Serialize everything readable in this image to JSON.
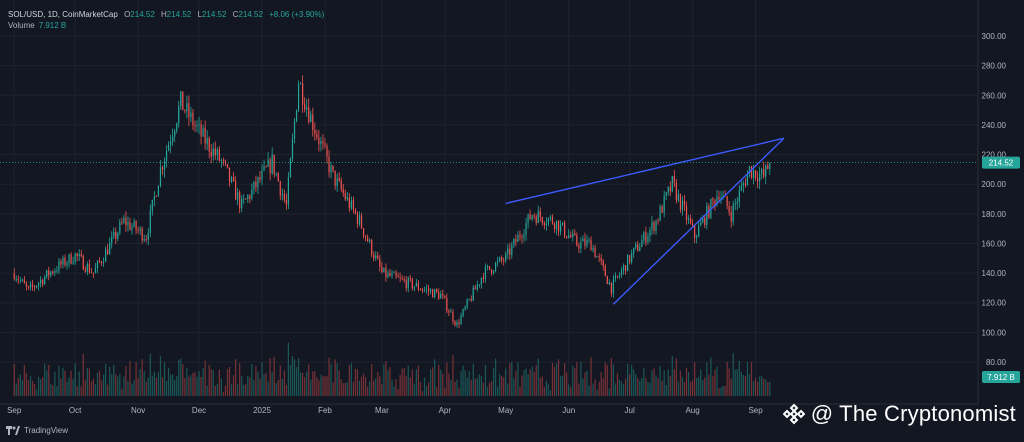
{
  "legend": {
    "symbol": "SOL/USD, 1D, CoinMarketCap",
    "open_label": "O",
    "open": "214.52",
    "high_label": "H",
    "high": "214.52",
    "low_label": "L",
    "low": "214.52",
    "close_label": "C",
    "close": "214.52",
    "change": "+8.06 (+3.90%)",
    "volume_label": "Volume",
    "volume": "7.912 B"
  },
  "branding": {
    "tradingview": "TradingView",
    "watermark": "@ The Cryptonomist"
  },
  "colors": {
    "up": "#26a69a",
    "down": "#ef5350",
    "trendline": "#3d5afe",
    "background": "#131722",
    "grid": "#1e222d"
  },
  "chart_data": {
    "type": "candlestick",
    "title": "SOL/USD, 1D, CoinMarketCap",
    "ylim": [
      80,
      305
    ],
    "y_ticks": [
      80,
      100,
      120,
      140,
      160,
      180,
      200,
      220,
      240,
      260,
      280,
      300
    ],
    "y_tick_labels": [
      "80.00",
      "100.00",
      "120.00",
      "140.00",
      "160.00",
      "180.00",
      "200.00",
      "220.00",
      "240.00",
      "260.00",
      "280.00",
      "300.00"
    ],
    "x_ticks": [
      "Sep",
      "Oct",
      "Nov",
      "Dec",
      "2025",
      "Feb",
      "Mar",
      "Apr",
      "May",
      "Jun",
      "Jul",
      "Aug",
      "Sep"
    ],
    "price_label": "214.52",
    "volume_label": "7.912 B",
    "close_path": [
      {
        "date": "2024-09-01",
        "price": 140
      },
      {
        "date": "2024-09-08",
        "price": 128
      },
      {
        "date": "2024-09-20",
        "price": 142
      },
      {
        "date": "2024-10-01",
        "price": 152
      },
      {
        "date": "2024-10-10",
        "price": 140
      },
      {
        "date": "2024-10-25",
        "price": 175
      },
      {
        "date": "2024-11-05",
        "price": 165
      },
      {
        "date": "2024-11-12",
        "price": 210
      },
      {
        "date": "2024-11-22",
        "price": 255
      },
      {
        "date": "2024-12-01",
        "price": 235
      },
      {
        "date": "2024-12-12",
        "price": 215
      },
      {
        "date": "2024-12-22",
        "price": 185
      },
      {
        "date": "2025-01-06",
        "price": 215
      },
      {
        "date": "2025-01-13",
        "price": 185
      },
      {
        "date": "2025-01-19",
        "price": 270
      },
      {
        "date": "2025-01-25",
        "price": 245
      },
      {
        "date": "2025-02-05",
        "price": 205
      },
      {
        "date": "2025-02-18",
        "price": 175
      },
      {
        "date": "2025-03-01",
        "price": 140
      },
      {
        "date": "2025-03-10",
        "price": 135
      },
      {
        "date": "2025-03-20",
        "price": 130
      },
      {
        "date": "2025-03-30",
        "price": 125
      },
      {
        "date": "2025-04-07",
        "price": 105
      },
      {
        "date": "2025-04-20",
        "price": 140
      },
      {
        "date": "2025-05-01",
        "price": 150
      },
      {
        "date": "2025-05-14",
        "price": 180
      },
      {
        "date": "2025-05-25",
        "price": 175
      },
      {
        "date": "2025-06-05",
        "price": 160
      },
      {
        "date": "2025-06-12",
        "price": 160
      },
      {
        "date": "2025-06-22",
        "price": 130
      },
      {
        "date": "2025-07-01",
        "price": 150
      },
      {
        "date": "2025-07-14",
        "price": 175
      },
      {
        "date": "2025-07-22",
        "price": 200
      },
      {
        "date": "2025-08-02",
        "price": 165
      },
      {
        "date": "2025-08-14",
        "price": 195
      },
      {
        "date": "2025-08-20",
        "price": 180
      },
      {
        "date": "2025-08-29",
        "price": 210
      },
      {
        "date": "2025-09-05",
        "price": 205
      },
      {
        "date": "2025-09-08",
        "price": 214.52
      }
    ],
    "annotations": [
      {
        "type": "trendline",
        "from": {
          "date": "2025-05-01",
          "price": 187
        },
        "to": {
          "date": "2025-09-15",
          "price": 231
        }
      },
      {
        "type": "trendline",
        "from": {
          "date": "2025-06-23",
          "price": 119
        },
        "to": {
          "date": "2025-09-15",
          "price": 231
        }
      }
    ]
  }
}
